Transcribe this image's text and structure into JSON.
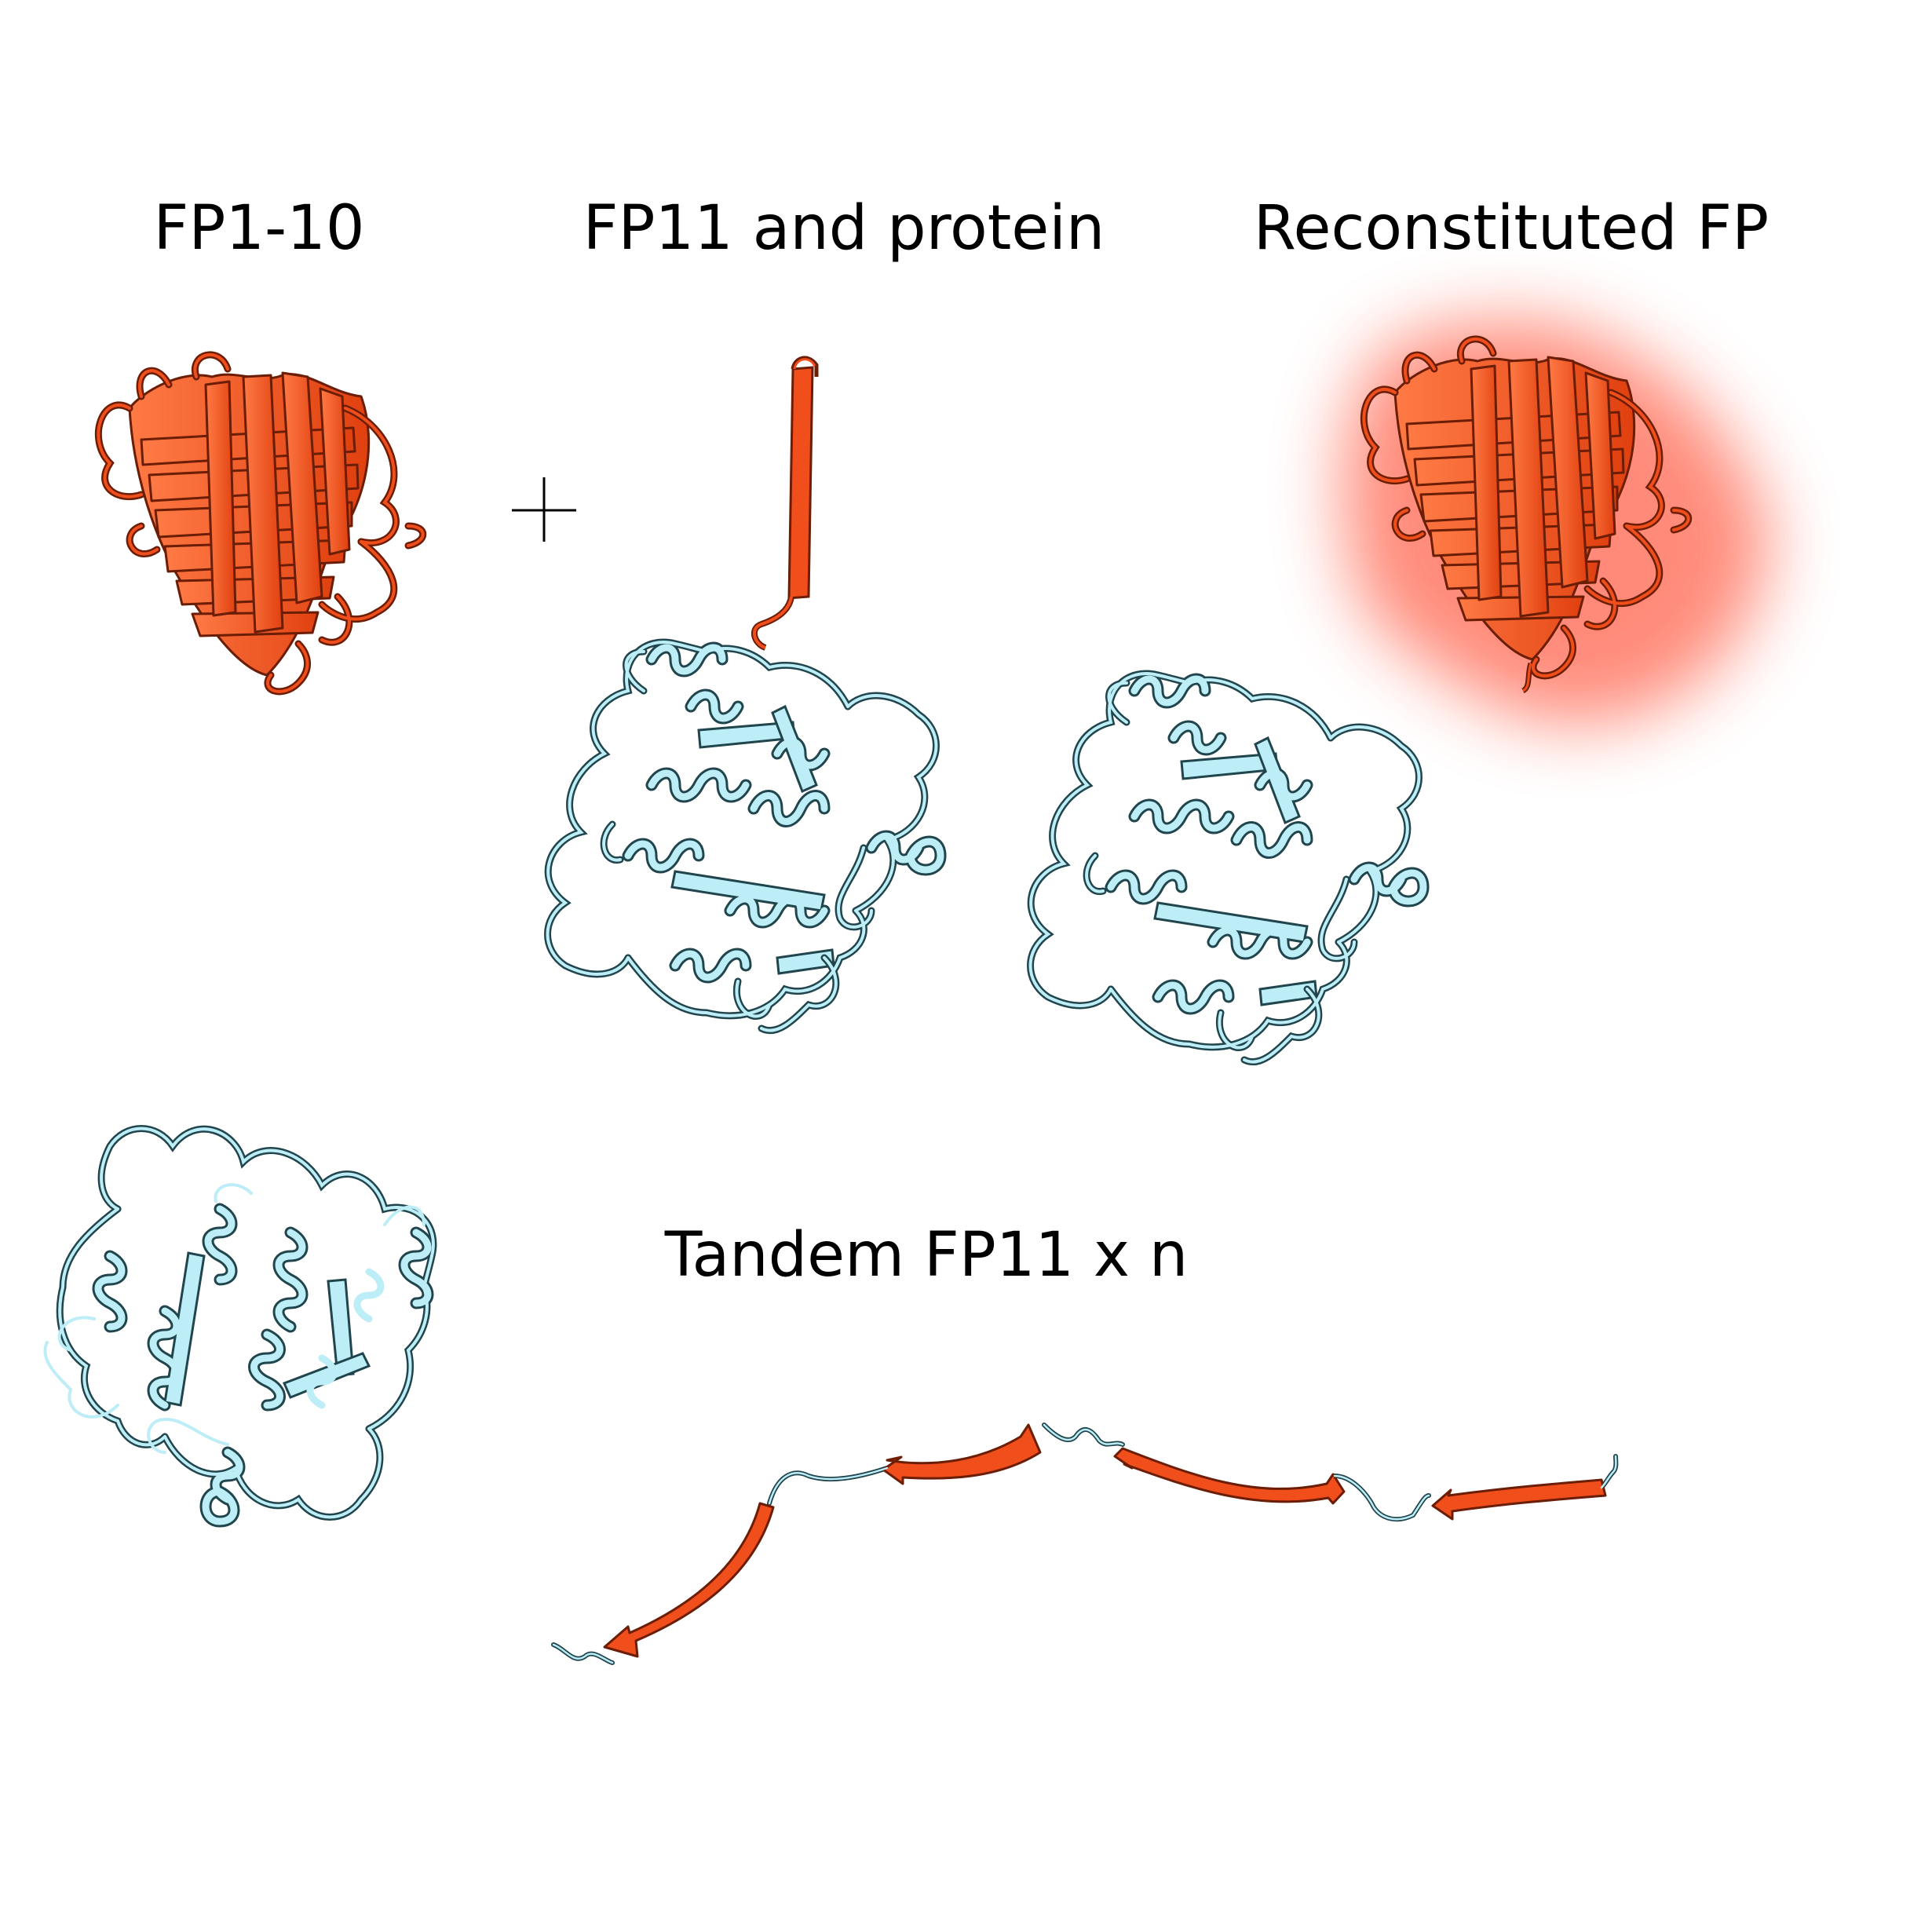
{
  "labels": {
    "fp1_10": "FP1-10",
    "fp11_protein": "FP11 and protein",
    "reconstituted": "Reconstituted FP",
    "tandem": "Tandem FP11 x n"
  },
  "symbols": {
    "plus": "+"
  },
  "colors": {
    "fp": "#f04e1a",
    "fp_outline": "#6b1d05",
    "protein": "#bdeef8",
    "protein_outline": "#21454d",
    "glow": "#ff5a42"
  }
}
